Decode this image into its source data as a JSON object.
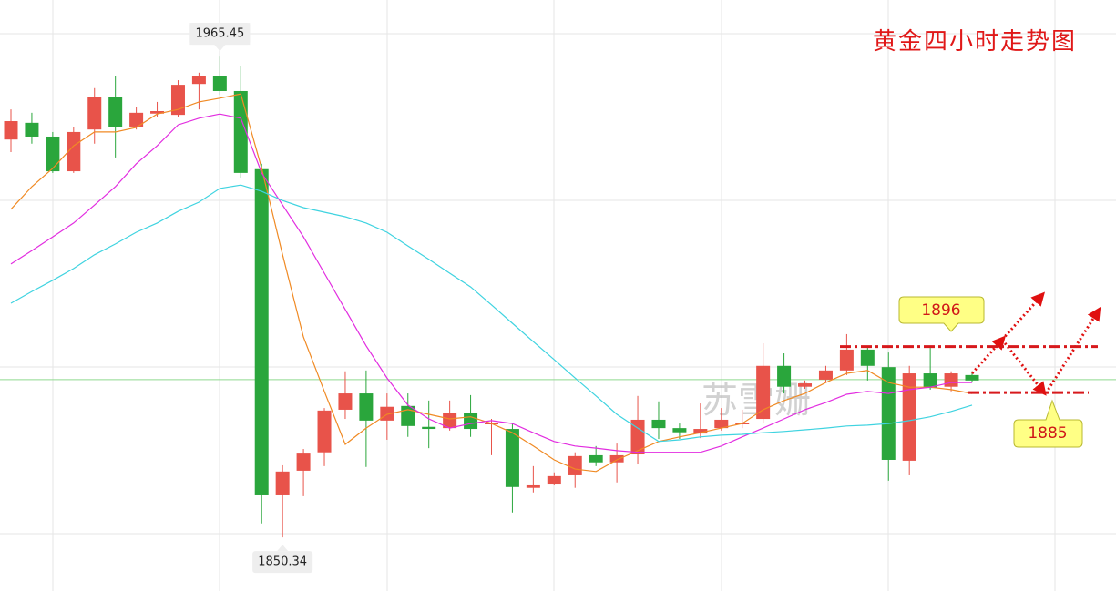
{
  "chart_data": {
    "type": "candlestick",
    "title": "黄金四小时走势图",
    "watermark": "苏雪姗",
    "ylim": [
      1837.5,
      1979
    ],
    "up_color": "#e8534a",
    "down_color": "#2aa63c",
    "open": [
      1945.6,
      1949.6,
      1946.3,
      1938.0,
      1948.0,
      1955.7,
      1948.7,
      1951.8,
      1951.5,
      1958.9,
      1960.9,
      1957.2,
      1938.5,
      1860.4,
      1866.3,
      1870.7,
      1880.9,
      1884.8,
      1878.3,
      1881.8,
      1876.8,
      1876.5,
      1880.2,
      1877.4,
      1876.3,
      1862.2,
      1863.0,
      1865.2,
      1870.0,
      1868.3,
      1870.2,
      1878.5,
      1876.5,
      1875.2,
      1876.5,
      1877.4,
      1878.7,
      1891.4,
      1886.4,
      1888.1,
      1890.3,
      1895.3,
      1891.1,
      1868.7,
      1889.6,
      1886.4,
      1889.2
    ],
    "high": [
      1952.8,
      1952.0,
      1947.4,
      1948.5,
      1957.9,
      1960.7,
      1953.3,
      1954.6,
      1959.8,
      1961.6,
      1965.45,
      1963.3,
      1939.8,
      1867.6,
      1871.5,
      1881.3,
      1890.1,
      1890.3,
      1884.8,
      1884.8,
      1883.1,
      1883.1,
      1884.4,
      1878.7,
      1877.6,
      1867.4,
      1865.9,
      1870.7,
      1872.2,
      1872.8,
      1884.2,
      1882.9,
      1877.6,
      1882.4,
      1881.3,
      1880.9,
      1896.8,
      1894.4,
      1887.9,
      1891.4,
      1899.0,
      1896.2,
      1894.6,
      1891.4,
      1895.7,
      1890.1,
      1890.1
    ],
    "low": [
      1942.6,
      1944.6,
      1937.6,
      1937.6,
      1944.6,
      1941.3,
      1948.0,
      1951.1,
      1951.1,
      1952.8,
      1956.3,
      1936.5,
      1853.7,
      1850.34,
      1860.2,
      1867.4,
      1878.7,
      1867.2,
      1873.7,
      1874.4,
      1871.7,
      1875.9,
      1874.4,
      1870.0,
      1856.3,
      1861.1,
      1862.8,
      1862.2,
      1867.4,
      1863.5,
      1867.8,
      1873.9,
      1873.9,
      1874.1,
      1875.9,
      1876.5,
      1877.6,
      1884.8,
      1885.9,
      1887.4,
      1889.2,
      1887.9,
      1863.9,
      1865.2,
      1885.7,
      1885.3,
      1887.4
    ],
    "close": [
      1950.0,
      1946.3,
      1938.0,
      1947.4,
      1955.7,
      1948.5,
      1952.0,
      1952.4,
      1958.7,
      1960.9,
      1957.2,
      1937.6,
      1860.4,
      1866.1,
      1870.4,
      1880.7,
      1884.8,
      1878.3,
      1881.6,
      1877.0,
      1876.3,
      1880.2,
      1876.3,
      1877.8,
      1862.4,
      1862.8,
      1865.0,
      1869.8,
      1868.3,
      1870.0,
      1878.5,
      1876.5,
      1875.5,
      1876.3,
      1878.5,
      1877.8,
      1891.4,
      1886.4,
      1887.2,
      1890.3,
      1895.3,
      1891.4,
      1868.9,
      1889.6,
      1886.1,
      1889.6,
      1887.9
    ],
    "moving_averages": [
      {
        "color": "#f08a24",
        "values": [
          1928.9,
          1934.3,
          1938.7,
          1944.1,
          1947.4,
          1947.4,
          1948.5,
          1951.7,
          1952.8,
          1954.6,
          1955.5,
          1956.5,
          1938.7,
          1918.0,
          1898.3,
          1885.3,
          1872.6,
          1876.5,
          1879.8,
          1880.9,
          1879.8,
          1878.7,
          1879.2,
          1877.6,
          1875.4,
          1872.2,
          1868.9,
          1866.7,
          1866.1,
          1868.9,
          1871.1,
          1873.3,
          1874.4,
          1875.4,
          1876.5,
          1877.6,
          1880.9,
          1883.1,
          1884.8,
          1887.4,
          1889.6,
          1890.3,
          1887.4,
          1886.3,
          1886.3,
          1885.7,
          1884.8
        ]
      },
      {
        "color": "#e22de0",
        "values": [
          1915.8,
          1919.0,
          1922.3,
          1925.6,
          1929.9,
          1934.3,
          1939.8,
          1944.1,
          1949.1,
          1950.7,
          1951.7,
          1950.7,
          1937.6,
          1929.9,
          1922.3,
          1913.6,
          1904.9,
          1896.2,
          1888.5,
          1882.0,
          1878.7,
          1876.5,
          1877.6,
          1878.3,
          1877.6,
          1875.4,
          1873.3,
          1872.2,
          1871.7,
          1871.1,
          1870.7,
          1870.7,
          1870.7,
          1870.7,
          1872.2,
          1874.4,
          1876.5,
          1878.7,
          1880.9,
          1882.6,
          1884.6,
          1885.3,
          1884.8,
          1885.7,
          1886.3,
          1887.4,
          1887.4
        ]
      },
      {
        "color": "#3fd3e0",
        "values": [
          1906.4,
          1909.2,
          1911.9,
          1914.7,
          1918.0,
          1920.6,
          1923.4,
          1925.6,
          1928.4,
          1930.6,
          1933.9,
          1934.7,
          1933.2,
          1931.0,
          1929.3,
          1928.2,
          1927.1,
          1925.6,
          1923.4,
          1920.1,
          1916.9,
          1913.6,
          1910.3,
          1906.0,
          1901.6,
          1897.2,
          1892.9,
          1888.5,
          1884.2,
          1879.8,
          1876.5,
          1873.3,
          1873.7,
          1874.4,
          1874.8,
          1875.0,
          1875.4,
          1875.7,
          1876.1,
          1876.5,
          1877.0,
          1877.2,
          1877.6,
          1878.3,
          1879.2,
          1880.5,
          1882.0
        ]
      }
    ],
    "current_price": 1888.1,
    "current_price_color": "#8fd98f",
    "levels": [
      {
        "value": 1896,
        "color": "#d7191c"
      },
      {
        "value": 1885,
        "color": "#d7191c"
      }
    ]
  }
}
